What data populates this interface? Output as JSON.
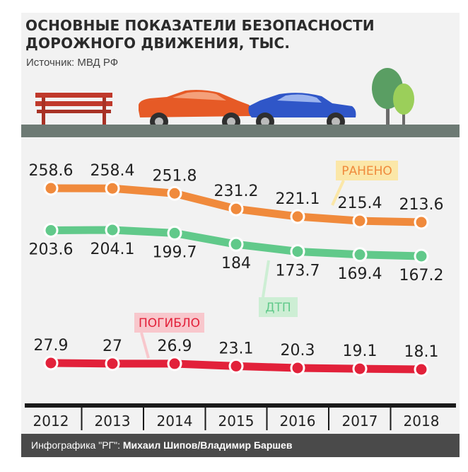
{
  "header": {
    "title_line1": "ОСНОВНЫЕ ПОКАЗАТЕЛИ БЕЗОПАСНОСТИ",
    "title_line2": "ДОРОЖНОГО ДВИЖЕНИЯ, ТЫС.",
    "source": "Источник: МВД РФ"
  },
  "footer": {
    "prefix": "Инфографика \"РГ\": ",
    "authors": "Михаил Шипов/Владимир Баршев"
  },
  "icons": [
    "bench-icon",
    "orange-car-icon",
    "blue-car-icon",
    "tree-icon"
  ],
  "chart_data": {
    "type": "line",
    "categories": [
      "2012",
      "2013",
      "2014",
      "2015",
      "2016",
      "2017",
      "2018"
    ],
    "series": [
      {
        "name": "РАНЕНО",
        "color": "#f08a3c",
        "label_bg": "#fbe7a8",
        "values": [
          258.6,
          258.4,
          251.8,
          231.2,
          221.1,
          215.4,
          213.6
        ],
        "labels": [
          "258.6",
          "258.4",
          "251.8",
          "231.2",
          "221.1",
          "215.4",
          "213.6"
        ]
      },
      {
        "name": "ДТП",
        "color": "#61c98a",
        "label_bg": "#cdeed4",
        "values": [
          203.6,
          204.1,
          199.7,
          184,
          173.7,
          169.4,
          167.2
        ],
        "labels": [
          "203.6",
          "204.1",
          "199.7",
          "184",
          "173.7",
          "169.4",
          "167.2"
        ]
      },
      {
        "name": "ПОГИБЛО",
        "color": "#e2213a",
        "label_bg": "#f8c7cc",
        "values": [
          27.9,
          27,
          26.9,
          23.1,
          20.3,
          19.1,
          18.1
        ],
        "labels": [
          "27.9",
          "27",
          "26.9",
          "23.1",
          "20.3",
          "19.1",
          "18.1"
        ]
      }
    ]
  }
}
